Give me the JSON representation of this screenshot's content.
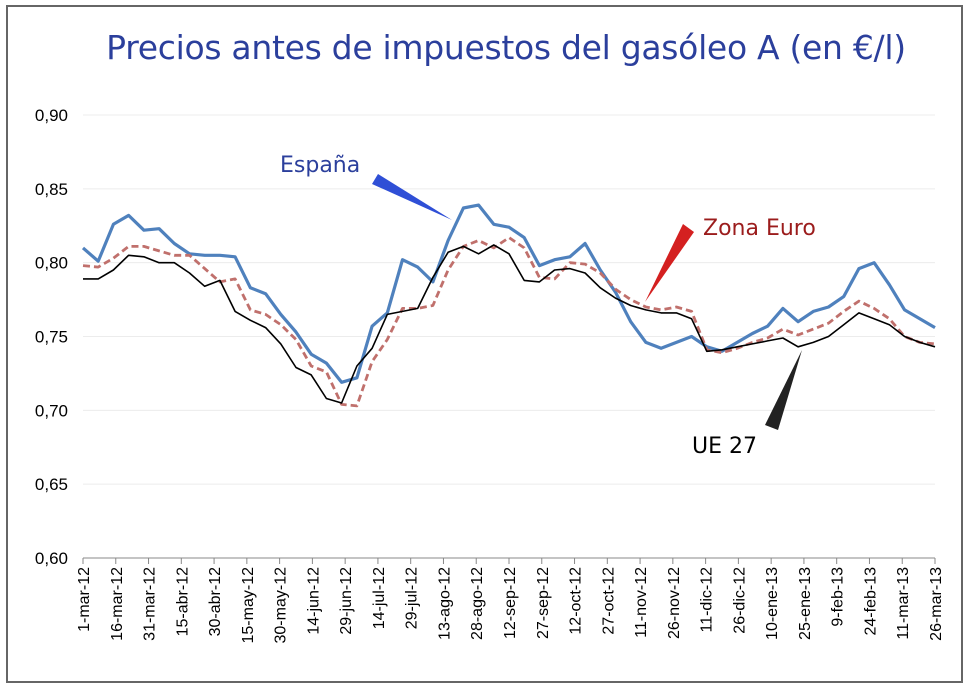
{
  "chart_data": {
    "type": "line",
    "title": "Precios antes de impuestos del gasóleo A (en €/l)",
    "xlabel": "",
    "ylabel": "",
    "ylim": [
      0.6,
      0.9
    ],
    "yticks": [
      "0,60",
      "0,65",
      "0,70",
      "0,75",
      "0,80",
      "0,85",
      "0,90"
    ],
    "yvalues": [
      0.6,
      0.65,
      0.7,
      0.75,
      0.8,
      0.85,
      0.9
    ],
    "xticks": [
      "1-mar-12",
      "16-mar-12",
      "31-mar-12",
      "15-abr-12",
      "30-abr-12",
      "15-may-12",
      "30-may-12",
      "14-jun-12",
      "29-jun-12",
      "14-jul-12",
      "29-jul-12",
      "13-ago-12",
      "28-ago-12",
      "12-sep-12",
      "27-sep-12",
      "12-oct-12",
      "27-oct-12",
      "11-nov-12",
      "26-nov-12",
      "11-dic-12",
      "26-dic-12",
      "10-ene-13",
      "25-ene-13",
      "9-feb-13",
      "24-feb-13",
      "11-mar-13",
      "26-mar-13"
    ],
    "grid": "horizontal",
    "legend": "inline annotations",
    "series": [
      {
        "name": "España",
        "color": "#4f81bd",
        "style": "solid",
        "values": [
          0.81,
          0.801,
          0.826,
          0.832,
          0.822,
          0.823,
          0.813,
          0.806,
          0.805,
          0.805,
          0.804,
          0.783,
          0.779,
          0.765,
          0.753,
          0.738,
          0.732,
          0.719,
          0.722,
          0.757,
          0.766,
          0.802,
          0.797,
          0.787,
          0.815,
          0.837,
          0.839,
          0.826,
          0.824,
          0.817,
          0.798,
          0.802,
          0.804,
          0.813,
          0.795,
          0.78,
          0.76,
          0.746,
          0.742,
          0.746,
          0.75,
          0.743,
          0.74,
          0.746,
          0.752,
          0.757,
          0.769,
          0.76,
          0.767,
          0.77,
          0.777,
          0.796,
          0.8,
          0.785,
          0.768,
          0.762,
          0.756
        ]
      },
      {
        "name": "Zona Euro",
        "color": "#c0504d",
        "style": "dashed",
        "values": [
          0.798,
          0.797,
          0.803,
          0.811,
          0.811,
          0.808,
          0.805,
          0.805,
          0.796,
          0.787,
          0.789,
          0.768,
          0.765,
          0.758,
          0.748,
          0.73,
          0.726,
          0.704,
          0.703,
          0.733,
          0.748,
          0.769,
          0.769,
          0.771,
          0.795,
          0.811,
          0.815,
          0.81,
          0.817,
          0.81,
          0.79,
          0.789,
          0.8,
          0.799,
          0.793,
          0.782,
          0.775,
          0.77,
          0.768,
          0.77,
          0.767,
          0.741,
          0.739,
          0.742,
          0.746,
          0.749,
          0.755,
          0.751,
          0.755,
          0.759,
          0.767,
          0.774,
          0.769,
          0.762,
          0.75,
          0.746,
          0.745
        ]
      },
      {
        "name": "UE 27",
        "color": "#000000",
        "style": "solid-thin",
        "values": [
          0.789,
          0.789,
          0.795,
          0.805,
          0.804,
          0.8,
          0.8,
          0.793,
          0.784,
          0.788,
          0.767,
          0.761,
          0.756,
          0.745,
          0.729,
          0.724,
          0.708,
          0.705,
          0.73,
          0.742,
          0.765,
          0.767,
          0.769,
          0.79,
          0.807,
          0.811,
          0.806,
          0.812,
          0.806,
          0.788,
          0.787,
          0.795,
          0.796,
          0.793,
          0.783,
          0.776,
          0.771,
          0.768,
          0.766,
          0.766,
          0.762,
          0.74,
          0.741,
          0.743,
          0.745,
          0.747,
          0.749,
          0.743,
          0.746,
          0.75,
          0.758,
          0.766,
          0.762,
          0.758,
          0.75,
          0.746,
          0.743
        ]
      }
    ],
    "annotations": [
      {
        "text": "España",
        "color": "#2b3f9c",
        "arrow_color": "#2f4fd6"
      },
      {
        "text": "Zona Euro",
        "color": "#9b1c1c",
        "arrow_color": "#d42020"
      },
      {
        "text": "UE 27",
        "color": "#000000",
        "arrow_color": "#222222"
      }
    ]
  }
}
